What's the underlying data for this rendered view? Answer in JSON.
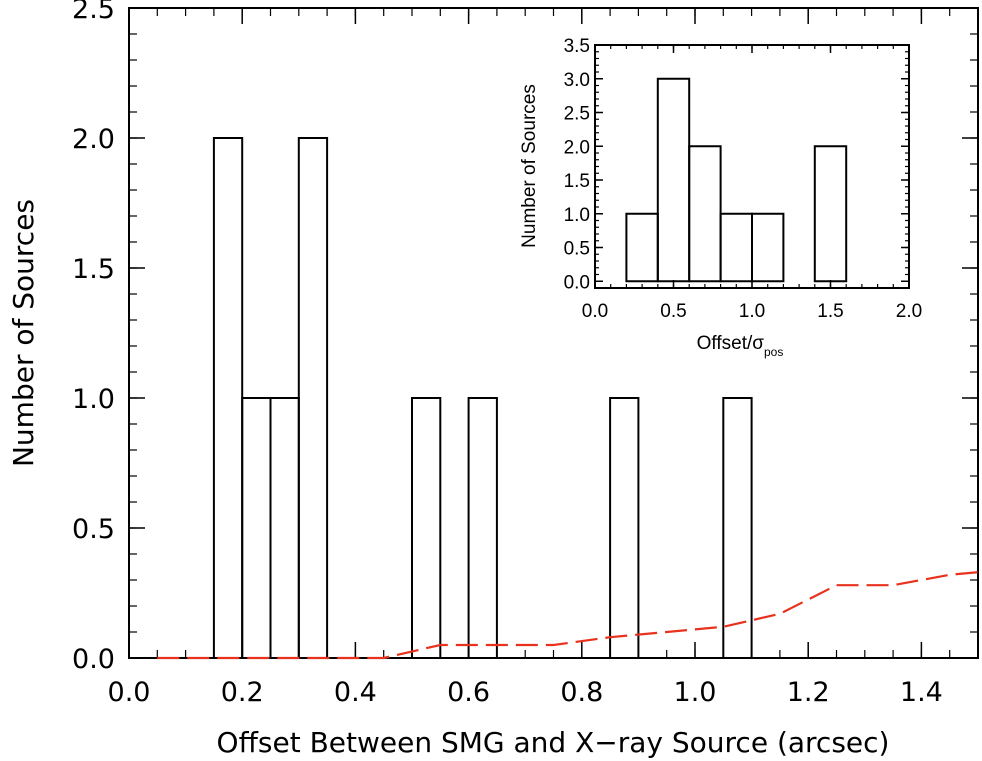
{
  "chart_data": [
    {
      "type": "histogram",
      "xlabel": "Offset Between SMG and X−ray Source (arcsec)",
      "ylabel": "Number of Sources",
      "xlim": [
        0.0,
        1.5
      ],
      "ylim": [
        0.0,
        2.5
      ],
      "xticks": [
        "0.0",
        "0.2",
        "0.4",
        "0.6",
        "0.8",
        "1.0",
        "1.2",
        "1.4"
      ],
      "yticks": [
        "0.0",
        "0.5",
        "1.0",
        "1.5",
        "2.0",
        "2.5"
      ],
      "bin_width": 0.05,
      "bin_edges": [
        0.15,
        0.2,
        0.25,
        0.3,
        0.35,
        0.4,
        0.45,
        0.5,
        0.55,
        0.6,
        0.65,
        0.7,
        0.75,
        0.8,
        0.85,
        0.9,
        0.95,
        1.0,
        1.05,
        1.1
      ],
      "counts": [
        2,
        1,
        1,
        2,
        0,
        0,
        0,
        1,
        0,
        1,
        0,
        0,
        0,
        0,
        1,
        0,
        0,
        0,
        1
      ],
      "series": [
        {
          "style": "dashed",
          "color": "#e8321e",
          "x": [
            0.05,
            0.15,
            0.25,
            0.35,
            0.45,
            0.55,
            0.65,
            0.75,
            0.85,
            0.95,
            1.05,
            1.15,
            1.25,
            1.35,
            1.45,
            1.5
          ],
          "y": [
            0.0,
            0.0,
            0.0,
            0.0,
            0.0,
            0.05,
            0.05,
            0.05,
            0.08,
            0.1,
            0.12,
            0.17,
            0.28,
            0.28,
            0.32,
            0.33
          ]
        }
      ]
    },
    {
      "type": "histogram",
      "inset": true,
      "xlabel_main": "Offset/σ",
      "xlabel_sub": "pos",
      "ylabel": "Number of Sources",
      "xlim": [
        0.0,
        2.0
      ],
      "ylim": [
        -0.1,
        3.5
      ],
      "xticks": [
        "0.0",
        "0.5",
        "1.0",
        "1.5",
        "2.0"
      ],
      "yticks": [
        "0.0",
        "0.5",
        "1.0",
        "1.5",
        "2.0",
        "2.5",
        "3.0",
        "3.5"
      ],
      "bin_width": 0.2,
      "bin_edges": [
        0.2,
        0.4,
        0.6,
        0.8,
        1.0,
        1.2,
        1.4,
        1.6
      ],
      "counts": [
        1,
        3,
        2,
        1,
        1,
        0,
        2
      ]
    }
  ]
}
